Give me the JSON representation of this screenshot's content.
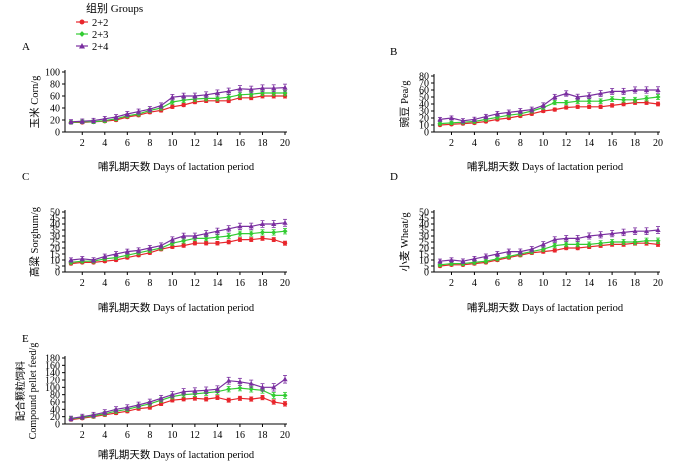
{
  "legend": {
    "title": "组别 Groups",
    "entries": [
      {
        "name": "2+2",
        "color": "#e8262c",
        "marker": "circle"
      },
      {
        "name": "2+3",
        "color": "#33cc33",
        "marker": "diamond"
      },
      {
        "name": "2+4",
        "color": "#7a2fa0",
        "marker": "triangle"
      }
    ]
  },
  "chart_data": [
    {
      "panel": "A",
      "type": "line",
      "xlabel": "哺乳期天数  Days of lactation period",
      "ylabel": "玉米 Corn/g",
      "xlim": [
        1,
        20
      ],
      "ylim": [
        0,
        100
      ],
      "xticks": [
        "2",
        "4",
        "6",
        "8",
        "10",
        "12",
        "14",
        "16",
        "18",
        "20"
      ],
      "yticks": [
        "0",
        "20",
        "40",
        "60",
        "80",
        "100"
      ],
      "x": [
        1,
        2,
        3,
        4,
        5,
        6,
        7,
        8,
        9,
        10,
        11,
        12,
        13,
        14,
        15,
        16,
        17,
        18,
        19,
        20
      ],
      "series": [
        {
          "name": "2+2",
          "values": [
            16,
            16,
            17,
            18,
            20,
            25,
            28,
            33,
            36,
            42,
            45,
            50,
            52,
            52,
            52,
            57,
            57,
            60,
            60,
            60
          ]
        },
        {
          "name": "2+3",
          "values": [
            16,
            17,
            17,
            19,
            22,
            27,
            30,
            36,
            40,
            50,
            53,
            55,
            56,
            56,
            58,
            62,
            63,
            65,
            65,
            65
          ]
        },
        {
          "name": "2+4",
          "values": [
            17,
            18,
            19,
            22,
            25,
            30,
            34,
            38,
            44,
            58,
            60,
            60,
            62,
            65,
            68,
            72,
            71,
            73,
            73,
            74
          ]
        }
      ]
    },
    {
      "panel": "B",
      "type": "line",
      "xlabel": "哺乳期天数  Days of lactation period",
      "ylabel": "豌豆 Pea/g",
      "xlim": [
        1,
        20
      ],
      "ylim": [
        0,
        80
      ],
      "xticks": [
        "2",
        "4",
        "6",
        "8",
        "10",
        "12",
        "14",
        "16",
        "18",
        "20"
      ],
      "yticks": [
        "0",
        "10",
        "20",
        "30",
        "40",
        "50",
        "60",
        "70",
        "80"
      ],
      "x": [
        1,
        2,
        3,
        4,
        5,
        6,
        7,
        8,
        9,
        10,
        11,
        12,
        13,
        14,
        15,
        16,
        17,
        18,
        19,
        20
      ],
      "series": [
        {
          "name": "2+2",
          "values": [
            10,
            11,
            12,
            13,
            15,
            18,
            20,
            23,
            26,
            30,
            32,
            35,
            36,
            36,
            36,
            38,
            40,
            42,
            42,
            40
          ]
        },
        {
          "name": "2+3",
          "values": [
            12,
            13,
            14,
            15,
            18,
            21,
            24,
            26,
            30,
            35,
            42,
            42,
            44,
            44,
            44,
            47,
            46,
            46,
            48,
            50
          ]
        },
        {
          "name": "2+4",
          "values": [
            18,
            20,
            16,
            18,
            22,
            26,
            28,
            30,
            32,
            38,
            50,
            55,
            50,
            52,
            55,
            58,
            58,
            60,
            60,
            60
          ]
        }
      ]
    },
    {
      "panel": "C",
      "type": "line",
      "xlabel": "哺乳期天数  Days of lactation period",
      "ylabel": "高粱 Sorghum/g",
      "xlim": [
        1,
        20
      ],
      "ylim": [
        0,
        50
      ],
      "xticks": [
        "2",
        "4",
        "6",
        "8",
        "10",
        "12",
        "14",
        "16",
        "18",
        "20"
      ],
      "yticks": [
        "0",
        "5",
        "10",
        "15",
        "20",
        "25",
        "30",
        "35",
        "40",
        "45",
        "50"
      ],
      "x": [
        1,
        2,
        3,
        4,
        5,
        6,
        7,
        8,
        9,
        10,
        11,
        12,
        13,
        14,
        15,
        16,
        17,
        18,
        19,
        20
      ],
      "series": [
        {
          "name": "2+2",
          "values": [
            7,
            8,
            8,
            9,
            10,
            12,
            14,
            16,
            19,
            21,
            22,
            24,
            24,
            24,
            25,
            27,
            27,
            28,
            27,
            24
          ]
        },
        {
          "name": "2+3",
          "values": [
            8,
            9,
            9,
            11,
            12,
            14,
            16,
            18,
            20,
            24,
            26,
            28,
            28,
            29,
            30,
            32,
            32,
            33,
            33,
            34
          ]
        },
        {
          "name": "2+4",
          "values": [
            10,
            11,
            10,
            13,
            15,
            17,
            18,
            20,
            22,
            27,
            30,
            30,
            32,
            34,
            36,
            38,
            38,
            40,
            40,
            41
          ]
        }
      ]
    },
    {
      "panel": "D",
      "type": "line",
      "xlabel": "哺乳期天数  Days of lactation period",
      "ylabel": "小麦 Wheat/g",
      "xlim": [
        1,
        20
      ],
      "ylim": [
        0,
        50
      ],
      "xticks": [
        "2",
        "4",
        "6",
        "8",
        "10",
        "12",
        "14",
        "16",
        "18",
        "20"
      ],
      "yticks": [
        "0",
        "5",
        "10",
        "15",
        "20",
        "25",
        "30",
        "35",
        "40",
        "45",
        "50"
      ],
      "x": [
        1,
        2,
        3,
        4,
        5,
        6,
        7,
        8,
        9,
        10,
        11,
        12,
        13,
        14,
        15,
        16,
        17,
        18,
        19,
        20
      ],
      "series": [
        {
          "name": "2+2",
          "values": [
            5,
            6,
            6,
            7,
            8,
            10,
            12,
            14,
            16,
            17,
            18,
            20,
            20,
            21,
            22,
            23,
            23,
            24,
            24,
            23
          ]
        },
        {
          "name": "2+3",
          "values": [
            6,
            7,
            7,
            8,
            9,
            11,
            13,
            15,
            17,
            19,
            22,
            23,
            23,
            23,
            24,
            25,
            25,
            25,
            26,
            26
          ]
        },
        {
          "name": "2+4",
          "values": [
            9,
            10,
            9,
            11,
            13,
            15,
            17,
            17,
            19,
            23,
            27,
            28,
            28,
            30,
            31,
            32,
            33,
            34,
            34,
            35
          ]
        }
      ]
    },
    {
      "panel": "E",
      "type": "line",
      "xlabel": "哺乳期天数  Days of lactation period",
      "ylabel": "配合颗粒饲料 Compound pellet feed/g",
      "xlim": [
        1,
        20
      ],
      "ylim": [
        0,
        180
      ],
      "xticks": [
        "2",
        "4",
        "6",
        "8",
        "10",
        "12",
        "14",
        "16",
        "18",
        "20"
      ],
      "yticks": [
        "0",
        "20",
        "40",
        "60",
        "80",
        "100",
        "120",
        "140",
        "160",
        "180"
      ],
      "x": [
        1,
        2,
        3,
        4,
        5,
        6,
        7,
        8,
        9,
        10,
        11,
        12,
        13,
        14,
        15,
        16,
        17,
        18,
        19,
        20
      ],
      "series": [
        {
          "name": "2+2",
          "values": [
            12,
            16,
            20,
            25,
            30,
            35,
            42,
            45,
            55,
            65,
            68,
            70,
            68,
            72,
            65,
            70,
            68,
            72,
            60,
            55
          ]
        },
        {
          "name": "2+3",
          "values": [
            14,
            18,
            22,
            28,
            35,
            40,
            48,
            55,
            65,
            75,
            80,
            82,
            85,
            88,
            95,
            98,
            95,
            92,
            78,
            78
          ]
        },
        {
          "name": "2+4",
          "values": [
            15,
            20,
            25,
            32,
            40,
            45,
            52,
            60,
            70,
            80,
            88,
            90,
            92,
            95,
            118,
            115,
            110,
            100,
            100,
            122
          ]
        }
      ]
    }
  ]
}
